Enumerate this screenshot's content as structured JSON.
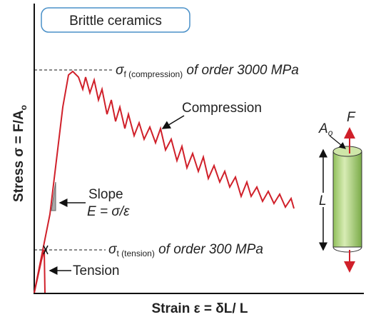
{
  "badge": "Brittle ceramics",
  "y_label": {
    "text": "Stress σ = F/A",
    "sub": "o"
  },
  "x_label": "Strain ε = δL/ L",
  "compression_strength": {
    "symbol": "σ",
    "sub": "f (compression)",
    "text": " of order 3000 MPa"
  },
  "compression_label": "Compression",
  "slope": {
    "label": "Slope",
    "formula": "E = σ/ε"
  },
  "tension_strength": {
    "symbol": "σ",
    "sub": "t (tension)",
    "text": " of order 300 MPa"
  },
  "tension_label": "Tension",
  "specimen": {
    "force": "F",
    "area": {
      "text": "A",
      "sub": "o"
    },
    "length": "L"
  }
}
